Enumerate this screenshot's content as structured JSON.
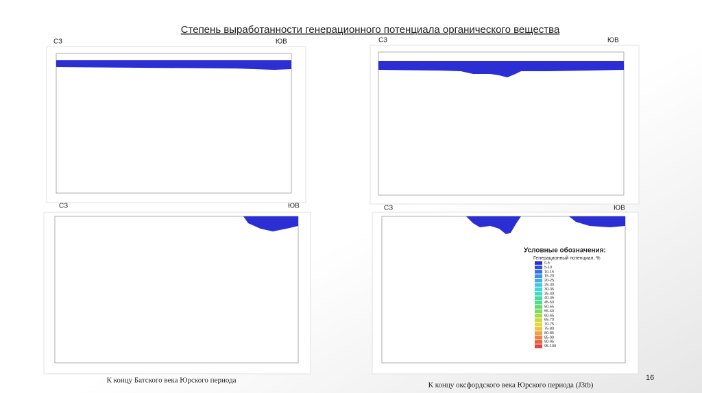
{
  "title": "Степень выработанности генерационного потенциала органического вещества",
  "panels": [
    {
      "left": "СЗ",
      "right": "ЮВ"
    },
    {
      "left": "СЗ",
      "right": "ЮВ"
    },
    {
      "left": "СЗ",
      "right": "ЮВ"
    },
    {
      "left": "СЗ",
      "right": "ЮВ"
    }
  ],
  "captions": [
    "К концу Батского века Юрского периода",
    "К концу оксфордского века Юрского периода (J3tb)"
  ],
  "page_number": "16",
  "legend": {
    "title": "Условные обозначения:",
    "subtitle": "Генерационный потенциал, %",
    "items": [
      {
        "label": "0-5",
        "color": "#2a2fd6"
      },
      {
        "label": "5-10",
        "color": "#3050e0"
      },
      {
        "label": "10-15",
        "color": "#3570e6"
      },
      {
        "label": "15-20",
        "color": "#3a90ea"
      },
      {
        "label": "20-25",
        "color": "#3fb0ec"
      },
      {
        "label": "25-30",
        "color": "#40c8e8"
      },
      {
        "label": "30-35",
        "color": "#40d8d8"
      },
      {
        "label": "35-40",
        "color": "#40dcc0"
      },
      {
        "label": "40-45",
        "color": "#44dca4"
      },
      {
        "label": "45-50",
        "color": "#50dc88"
      },
      {
        "label": "50-55",
        "color": "#60dc6c"
      },
      {
        "label": "55-60",
        "color": "#80dc58"
      },
      {
        "label": "60-65",
        "color": "#a4dc4c"
      },
      {
        "label": "65-70",
        "color": "#c8dc44"
      },
      {
        "label": "70-75",
        "color": "#e4d840"
      },
      {
        "label": "75-80",
        "color": "#f0c040"
      },
      {
        "label": "80-85",
        "color": "#f0a040"
      },
      {
        "label": "85-90",
        "color": "#ee8040"
      },
      {
        "label": "90-95",
        "color": "#ec6040"
      },
      {
        "label": "95-100",
        "color": "#e84040"
      }
    ]
  }
}
